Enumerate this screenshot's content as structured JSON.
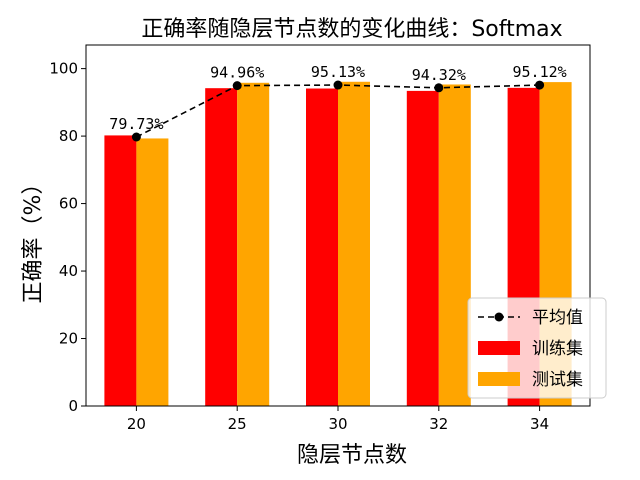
{
  "chart_data": {
    "type": "bar",
    "title": "正确率随隐层节点数的变化曲线：Softmax",
    "xlabel": "隐层节点数",
    "ylabel": "正确率（%）",
    "categories": [
      "20",
      "25",
      "30",
      "32",
      "34"
    ],
    "ylim": [
      0,
      107
    ],
    "yticks": [
      0,
      20,
      40,
      60,
      80,
      100
    ],
    "grid": false,
    "legend_position": "lower-right",
    "series": [
      {
        "name": "训练集",
        "type": "bar",
        "color": "#ff0000",
        "values": [
          80.2,
          94.2,
          94.1,
          93.4,
          94.3
        ]
      },
      {
        "name": "测试集",
        "type": "bar",
        "color": "#ffa500",
        "values": [
          79.3,
          95.8,
          96.1,
          95.3,
          96.0
        ]
      },
      {
        "name": "平均值",
        "type": "line",
        "color": "#000000",
        "linestyle": "dashed",
        "marker": "circle",
        "values": [
          79.73,
          94.96,
          95.13,
          94.32,
          95.12
        ],
        "labels": [
          "79.73%",
          "94.96%",
          "95.13%",
          "94.32%",
          "95.12%"
        ]
      }
    ]
  }
}
